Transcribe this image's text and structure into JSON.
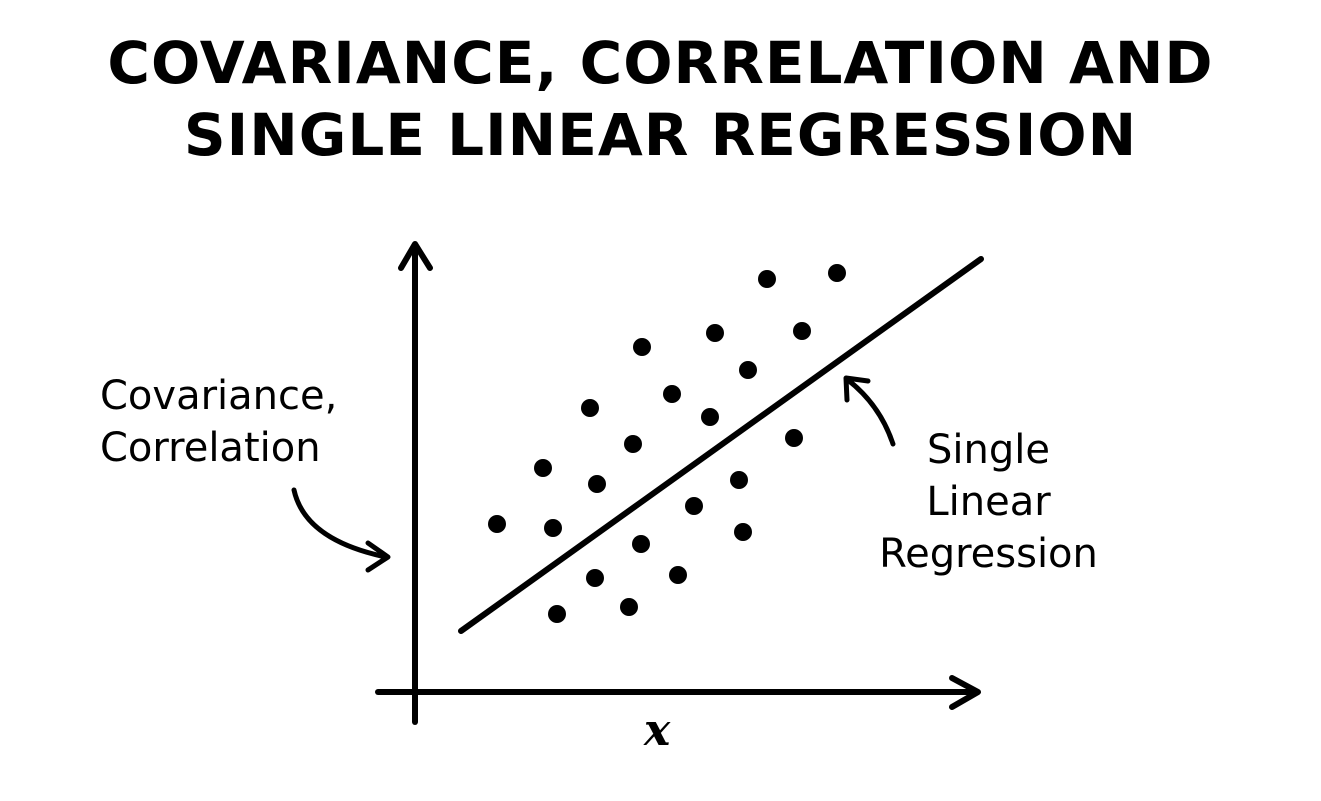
{
  "title": {
    "line1": "COVARIANCE, CORRELATION AND",
    "line2": "SINGLE LINEAR REGRESSION"
  },
  "annotations": {
    "covariance": [
      "Covariance,",
      "Correlation"
    ],
    "regression": [
      "Single",
      "Linear",
      "Regression"
    ]
  },
  "axis": {
    "x_label": "x"
  },
  "colors": {
    "ink": "#000000",
    "background": "#ffffff"
  }
}
